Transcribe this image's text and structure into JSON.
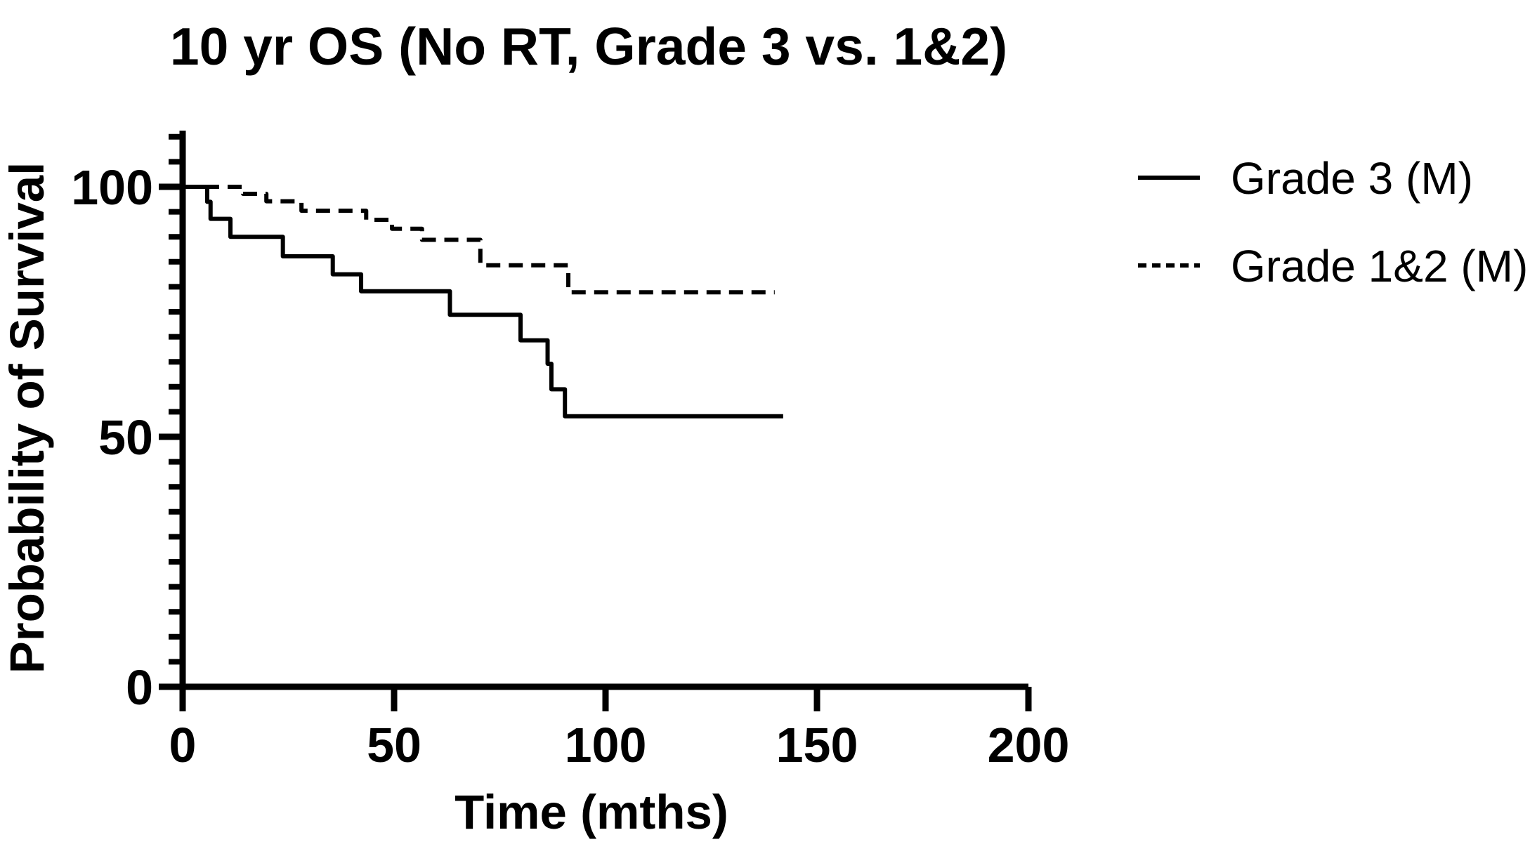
{
  "title": "10 yr OS (No RT, Grade 3 vs. 1&2)",
  "colors": {
    "foreground": "#000000",
    "background": "#ffffff"
  },
  "legend": {
    "entries": [
      {
        "label": "Grade 3 (M)",
        "line_style": "solid"
      },
      {
        "label": "Grade 1&2 (M)",
        "line_style": "dashed"
      }
    ]
  },
  "chart_data": {
    "type": "line",
    "subtype": "kaplan-meier-step-survival",
    "title": "10 yr OS (No RT, Grade 3 vs. 1&2)",
    "xlabel": "Time (mths)",
    "ylabel": "Probability of Survival",
    "xlim": [
      0,
      200
    ],
    "ylim": [
      0,
      110
    ],
    "x_major_ticks": [
      0,
      50,
      100,
      150,
      200
    ],
    "y_major_ticks": [
      0,
      50,
      100
    ],
    "y_minor_tick_step": 5,
    "grid": false,
    "legend_position": "right",
    "series": [
      {
        "name": "Grade 3 (M)",
        "line_style": "solid",
        "color": "#000000",
        "end_time": 142,
        "steps": [
          [
            0,
            100
          ],
          [
            5.8,
            97.0
          ],
          [
            6.6,
            93.6
          ],
          [
            11.3,
            90.0
          ],
          [
            23.7,
            86.1
          ],
          [
            35.5,
            82.5
          ],
          [
            42.2,
            79.1
          ],
          [
            63.2,
            74.4
          ],
          [
            79.9,
            69.3
          ],
          [
            86.3,
            64.6
          ],
          [
            87.2,
            59.5
          ],
          [
            90.4,
            54.1
          ]
        ]
      },
      {
        "name": "Grade 1&2 (M)",
        "line_style": "dashed",
        "color": "#000000",
        "end_time": 140,
        "steps": [
          [
            0,
            100
          ],
          [
            14.3,
            98.6
          ],
          [
            19.8,
            97.1
          ],
          [
            28.1,
            95.2
          ],
          [
            43.4,
            93.4
          ],
          [
            49.5,
            91.6
          ],
          [
            56.6,
            89.4
          ],
          [
            70.4,
            84.3
          ],
          [
            91.2,
            78.9
          ]
        ]
      }
    ]
  }
}
